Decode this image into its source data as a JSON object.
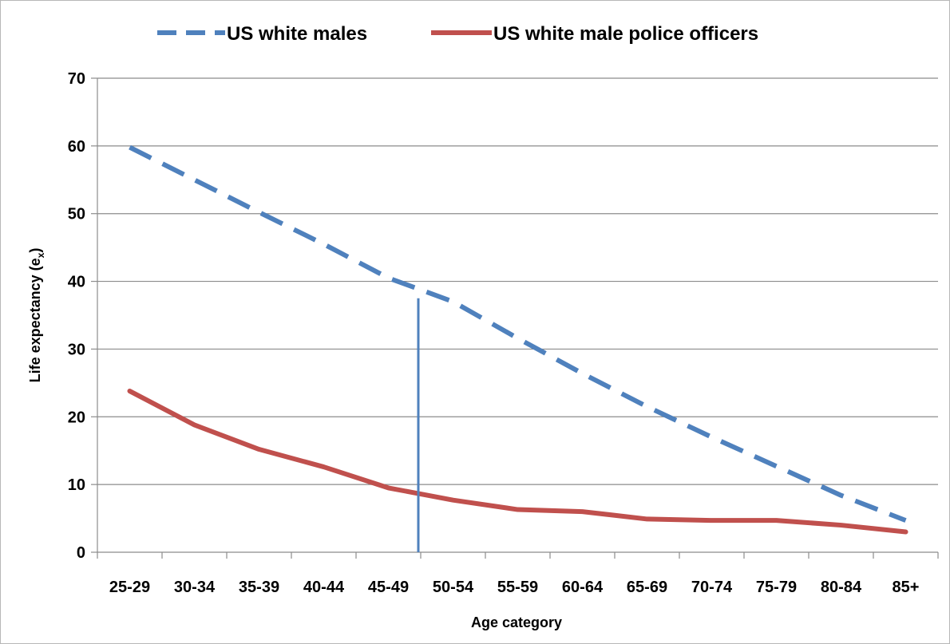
{
  "chart_data": {
    "type": "line",
    "xlabel": "Age category",
    "ylabel_main": "Life expectancy (e",
    "ylabel_sub": "x",
    "ylabel_close": ")",
    "ylim": [
      0,
      70
    ],
    "yticks": [
      0,
      10,
      20,
      30,
      40,
      50,
      60,
      70
    ],
    "grid": true,
    "legend_position": "top",
    "categories": [
      "25-29",
      "30-34",
      "35-39",
      "40-44",
      "45-49",
      "50-54",
      "55-59",
      "60-64",
      "65-69",
      "70-74",
      "75-79",
      "80-84",
      "85+"
    ],
    "series": [
      {
        "name": "US white males",
        "style": "dashed",
        "color": "#4f81bd",
        "values": [
          59.8,
          55.0,
          50.2,
          45.5,
          40.5,
          37.0,
          31.6,
          26.4,
          21.5,
          17.0,
          12.7,
          8.4,
          4.7
        ]
      },
      {
        "name": "US white male police officers",
        "style": "solid",
        "color": "#c0504d",
        "values": [
          23.8,
          18.8,
          15.2,
          12.6,
          9.5,
          7.7,
          6.3,
          6.0,
          4.9,
          4.7,
          4.7,
          4.0,
          3.0
        ]
      }
    ],
    "vertical_marker": {
      "color": "#4f81bd",
      "category_boundary": "45-49 | 50-54",
      "top_value": 37.5
    }
  }
}
